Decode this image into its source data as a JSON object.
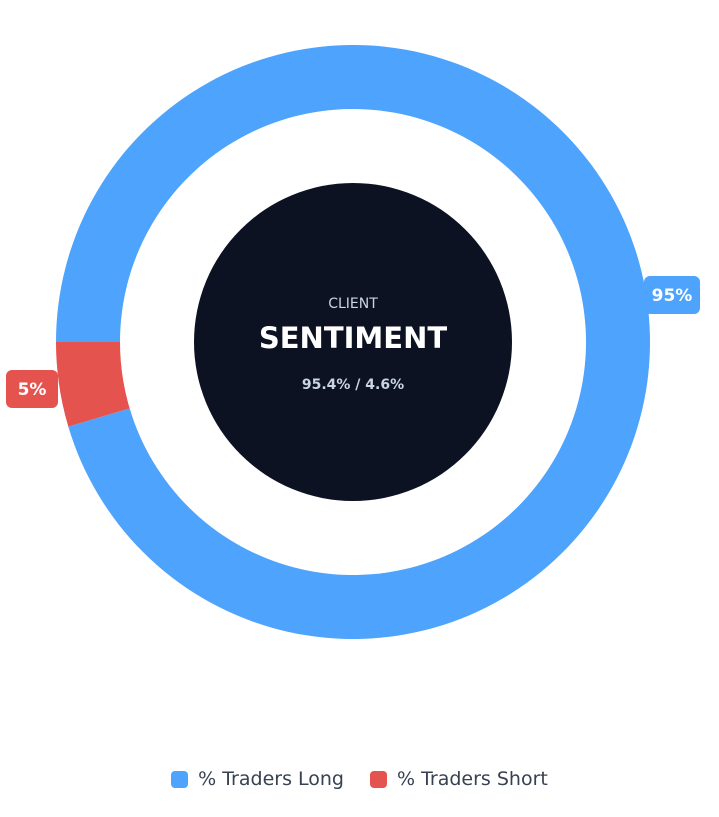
{
  "center": {
    "kicker": "CLIENT",
    "title": "SENTIMENT",
    "ratio": "95.4% / 4.6%"
  },
  "colors": {
    "long": "#4ea3fd",
    "short": "#e5534f",
    "center_bg": "#0c1222"
  },
  "chart_data": {
    "type": "pie",
    "variant": "donut",
    "categories": [
      "% Traders Long",
      "% Traders Short"
    ],
    "values": [
      95.4,
      4.6
    ],
    "data_labels": [
      "95%",
      "5%"
    ],
    "legend_position": "bottom"
  },
  "legend": {
    "items": [
      {
        "label": "% Traders Long",
        "color": "#4ea3fd"
      },
      {
        "label": "% Traders Short",
        "color": "#e5534f"
      }
    ]
  }
}
